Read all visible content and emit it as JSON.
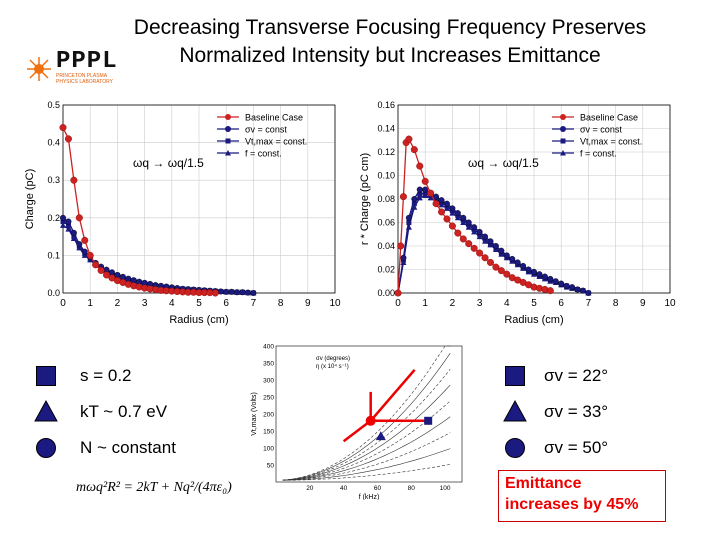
{
  "title": {
    "line1": "Decreasing Transverse Focusing Frequency Preserves",
    "line2": "Normalized Intensity but Increases Emittance"
  },
  "logo": {
    "text": "PPPL",
    "sub": "PRINCETON PLASMA PHYSICS LABORATORY"
  },
  "colors": {
    "baseline": "#cc2222",
    "navy": "#1a1a80",
    "emittance": "#e00000"
  },
  "chart_data": [
    {
      "type": "line",
      "xlabel": "Radius (cm)",
      "ylabel": "Charge (pC)",
      "annotation": "ωq → ωq/1.5",
      "xlim": [
        0,
        10
      ],
      "ylim": [
        0,
        0.5
      ],
      "xticks": [
        "0",
        "1",
        "2",
        "3",
        "4",
        "5",
        "6",
        "7",
        "8",
        "9",
        "10"
      ],
      "yticks": [
        "0.0",
        "0.1",
        "0.2",
        "0.3",
        "0.4",
        "0.5"
      ],
      "legend": [
        "Baseline Case",
        "σv = const",
        "Vt,max = const.",
        "f = const."
      ],
      "series": [
        {
          "name": "Baseline Case",
          "x": [
            0,
            0.2,
            0.4,
            0.6,
            0.8,
            1,
            1.2,
            1.4,
            1.6,
            1.8,
            2,
            2.2,
            2.4,
            2.6,
            2.8,
            3,
            3.2,
            3.4,
            3.6,
            3.8,
            4,
            4.2,
            4.4,
            4.6,
            4.8,
            5,
            5.2,
            5.4,
            5.6
          ],
          "y": [
            0.44,
            0.41,
            0.3,
            0.2,
            0.14,
            0.1,
            0.075,
            0.06,
            0.048,
            0.04,
            0.033,
            0.028,
            0.023,
            0.019,
            0.016,
            0.013,
            0.011,
            0.009,
            0.007,
            0.006,
            0.005,
            0.004,
            0.003,
            0.002,
            0.002,
            0.001,
            0.001,
            0.001,
            0
          ]
        },
        {
          "name": "σv = const",
          "x": [
            0,
            0.2,
            0.4,
            0.6,
            0.8,
            1,
            1.2,
            1.4,
            1.6,
            1.8,
            2,
            2.2,
            2.4,
            2.6,
            2.8,
            3,
            3.2,
            3.4,
            3.6,
            3.8,
            4,
            4.2,
            4.4,
            4.6,
            4.8,
            5,
            5.2,
            5.4,
            5.6,
            5.8,
            6,
            6.2,
            6.4,
            6.6,
            6.8,
            7
          ],
          "y": [
            0.2,
            0.19,
            0.16,
            0.13,
            0.11,
            0.095,
            0.08,
            0.07,
            0.062,
            0.055,
            0.048,
            0.043,
            0.038,
            0.034,
            0.03,
            0.027,
            0.024,
            0.021,
            0.019,
            0.017,
            0.015,
            0.013,
            0.011,
            0.01,
            0.009,
            0.008,
            0.007,
            0.006,
            0.005,
            0.004,
            0.003,
            0.003,
            0.002,
            0.002,
            0.001,
            0
          ]
        },
        {
          "name": "Vt,max = const.",
          "x": [
            0,
            0.2,
            0.4,
            0.6,
            0.8,
            1,
            1.2,
            1.4,
            1.6,
            1.8,
            2,
            2.2,
            2.4,
            2.6,
            2.8,
            3,
            3.2,
            3.4,
            3.6,
            3.8,
            4,
            4.2,
            4.4,
            4.6,
            4.8,
            5,
            5.2,
            5.4,
            5.6,
            5.8,
            6,
            6.2,
            6.4,
            6.6,
            6.8,
            7
          ],
          "y": [
            0.19,
            0.18,
            0.15,
            0.125,
            0.105,
            0.09,
            0.078,
            0.068,
            0.06,
            0.053,
            0.047,
            0.042,
            0.037,
            0.033,
            0.029,
            0.026,
            0.023,
            0.02,
            0.018,
            0.016,
            0.014,
            0.012,
            0.011,
            0.01,
            0.009,
            0.008,
            0.007,
            0.006,
            0.005,
            0.004,
            0.003,
            0.003,
            0.002,
            0.002,
            0.001,
            0
          ]
        },
        {
          "name": "f = const.",
          "x": [
            0,
            0.2,
            0.4,
            0.6,
            0.8,
            1,
            1.2,
            1.4,
            1.6,
            1.8,
            2,
            2.2,
            2.4,
            2.6,
            2.8,
            3,
            3.2,
            3.4,
            3.6,
            3.8,
            4,
            4.2,
            4.4,
            4.6,
            4.8,
            5,
            5.2,
            5.4,
            5.6,
            5.8,
            6,
            6.2,
            6.4,
            6.6,
            6.8,
            7
          ],
          "y": [
            0.18,
            0.17,
            0.145,
            0.12,
            0.1,
            0.088,
            0.076,
            0.066,
            0.058,
            0.051,
            0.045,
            0.04,
            0.036,
            0.032,
            0.028,
            0.025,
            0.022,
            0.02,
            0.018,
            0.016,
            0.014,
            0.012,
            0.011,
            0.01,
            0.009,
            0.008,
            0.007,
            0.006,
            0.005,
            0.004,
            0.003,
            0.003,
            0.002,
            0.002,
            0.001,
            0
          ]
        }
      ]
    },
    {
      "type": "line",
      "xlabel": "Radius (cm)",
      "ylabel": "r * Charge (pC cm)",
      "annotation": "ωq → ωq/1.5",
      "xlim": [
        0,
        10
      ],
      "ylim": [
        0,
        0.16
      ],
      "xticks": [
        "0",
        "1",
        "2",
        "3",
        "4",
        "5",
        "6",
        "7",
        "8",
        "9",
        "10"
      ],
      "yticks": [
        "0.00",
        "0.02",
        "0.04",
        "0.06",
        "0.08",
        "0.10",
        "0.12",
        "0.14",
        "0.16"
      ],
      "legend": [
        "Baseline Case",
        "σv = const",
        "Vt,max = const.",
        "f = const."
      ],
      "series": [
        {
          "name": "Baseline Case",
          "x": [
            0,
            0.1,
            0.2,
            0.3,
            0.4,
            0.6,
            0.8,
            1,
            1.2,
            1.4,
            1.6,
            1.8,
            2,
            2.2,
            2.4,
            2.6,
            2.8,
            3,
            3.2,
            3.4,
            3.6,
            3.8,
            4,
            4.2,
            4.4,
            4.6,
            4.8,
            5,
            5.2,
            5.4,
            5.6
          ],
          "y": [
            0,
            0.04,
            0.082,
            0.128,
            0.131,
            0.122,
            0.108,
            0.095,
            0.085,
            0.076,
            0.069,
            0.063,
            0.057,
            0.051,
            0.046,
            0.042,
            0.038,
            0.034,
            0.03,
            0.026,
            0.022,
            0.019,
            0.016,
            0.013,
            0.011,
            0.009,
            0.007,
            0.005,
            0.004,
            0.003,
            0.002
          ]
        },
        {
          "name": "σv = const",
          "x": [
            0,
            0.2,
            0.4,
            0.6,
            0.8,
            1,
            1.2,
            1.4,
            1.6,
            1.8,
            2,
            2.2,
            2.4,
            2.6,
            2.8,
            3,
            3.2,
            3.4,
            3.6,
            3.8,
            4,
            4.2,
            4.4,
            4.6,
            4.8,
            5,
            5.2,
            5.4,
            5.6,
            5.8,
            6,
            6.2,
            6.4,
            6.6,
            6.8,
            7
          ],
          "y": [
            0,
            0.03,
            0.064,
            0.08,
            0.088,
            0.088,
            0.085,
            0.082,
            0.079,
            0.076,
            0.072,
            0.068,
            0.064,
            0.06,
            0.056,
            0.052,
            0.048,
            0.044,
            0.04,
            0.036,
            0.032,
            0.029,
            0.026,
            0.023,
            0.02,
            0.018,
            0.016,
            0.014,
            0.012,
            0.01,
            0.008,
            0.006,
            0.005,
            0.003,
            0.002,
            0
          ]
        },
        {
          "name": "Vt,max = const.",
          "x": [
            0,
            0.2,
            0.4,
            0.6,
            0.8,
            1,
            1.2,
            1.4,
            1.6,
            1.8,
            2,
            2.2,
            2.4,
            2.6,
            2.8,
            3,
            3.2,
            3.4,
            3.6,
            3.8,
            4,
            4.2,
            4.4,
            4.6,
            4.8,
            5,
            5.2,
            5.4,
            5.6,
            5.8,
            6,
            6.2,
            6.4,
            6.6,
            6.8,
            7
          ],
          "y": [
            0,
            0.028,
            0.06,
            0.076,
            0.084,
            0.085,
            0.083,
            0.08,
            0.077,
            0.074,
            0.07,
            0.066,
            0.062,
            0.058,
            0.054,
            0.05,
            0.046,
            0.042,
            0.038,
            0.034,
            0.031,
            0.028,
            0.025,
            0.022,
            0.019,
            0.017,
            0.015,
            0.013,
            0.011,
            0.009,
            0.007,
            0.006,
            0.004,
            0.003,
            0.002,
            0
          ]
        },
        {
          "name": "f = const.",
          "x": [
            0,
            0.2,
            0.4,
            0.6,
            0.8,
            1,
            1.2,
            1.4,
            1.6,
            1.8,
            2,
            2.2,
            2.4,
            2.6,
            2.8,
            3,
            3.2,
            3.4,
            3.6,
            3.8,
            4,
            4.2,
            4.4,
            4.6,
            4.8,
            5,
            5.2,
            5.4,
            5.6,
            5.8,
            6,
            6.2,
            6.4,
            6.6,
            6.8,
            7
          ],
          "y": [
            0,
            0.026,
            0.056,
            0.073,
            0.081,
            0.083,
            0.081,
            0.078,
            0.075,
            0.072,
            0.068,
            0.064,
            0.06,
            0.056,
            0.052,
            0.048,
            0.044,
            0.041,
            0.037,
            0.033,
            0.03,
            0.027,
            0.024,
            0.021,
            0.018,
            0.016,
            0.014,
            0.012,
            0.01,
            0.009,
            0.007,
            0.005,
            0.004,
            0.003,
            0.002,
            0
          ]
        }
      ]
    }
  ],
  "params": {
    "s": "s = 0.2",
    "kt": "kT ~ 0.7 eV",
    "n": "N ~ constant"
  },
  "sigma": {
    "s1": "σv = 22°",
    "s2": "σv = 33°",
    "s3": "σv = 50°"
  },
  "diagram": {
    "ylabel": "Vt,max (Volts)",
    "xlabel": "f (kHz)",
    "legend1": "σv (degrees)",
    "legend2": "η (x 10⁴ s⁻¹)",
    "yticks": [
      "400",
      "350",
      "300",
      "250",
      "200",
      "150",
      "100",
      "50"
    ],
    "xticks": [
      "20",
      "40",
      "60",
      "80",
      "100"
    ]
  },
  "formula": "mωq²R² = 2kT + Nq²/(4πε₀)",
  "emittance": {
    "line1": "Emittance",
    "line2": "increases by 45%"
  }
}
